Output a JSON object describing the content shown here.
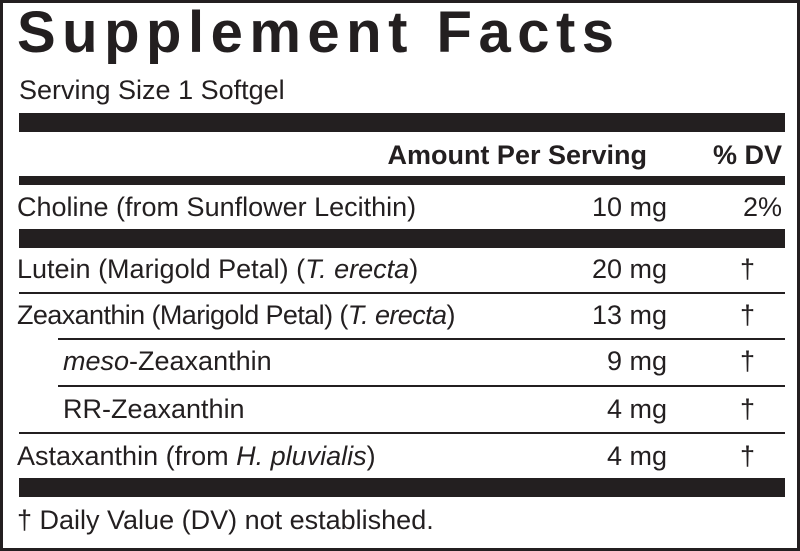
{
  "title": "Supplement Facts",
  "serving_size": "Serving Size 1 Softgel",
  "header": {
    "amount": "Amount Per Serving",
    "dv": "% DV"
  },
  "rows": [
    {
      "name": "Choline (from Sunflower Lecithin)",
      "amount": "10 mg",
      "dv": "2%"
    },
    {
      "name_pre": "Lutein (Marigold Petal) (",
      "name_italic": "T. erecta",
      "name_post": ")",
      "amount": "20 mg",
      "dv": "†"
    },
    {
      "name_pre": "Zeaxanthin (Marigold Petal) (",
      "name_italic": "T. erecta",
      "name_post": ")",
      "amount": "13 mg",
      "dv": "†"
    },
    {
      "name_italic": "meso",
      "name_post": "-Zeaxanthin",
      "amount": "9 mg",
      "dv": "†"
    },
    {
      "name": "RR-Zeaxanthin",
      "amount": "4 mg",
      "dv": "†"
    },
    {
      "name_pre": "Astaxanthin (from ",
      "name_italic": "H. pluvialis",
      "name_post": ")",
      "amount": "4 mg",
      "dv": "†"
    }
  ],
  "footnote": "† Daily Value (DV) not established."
}
